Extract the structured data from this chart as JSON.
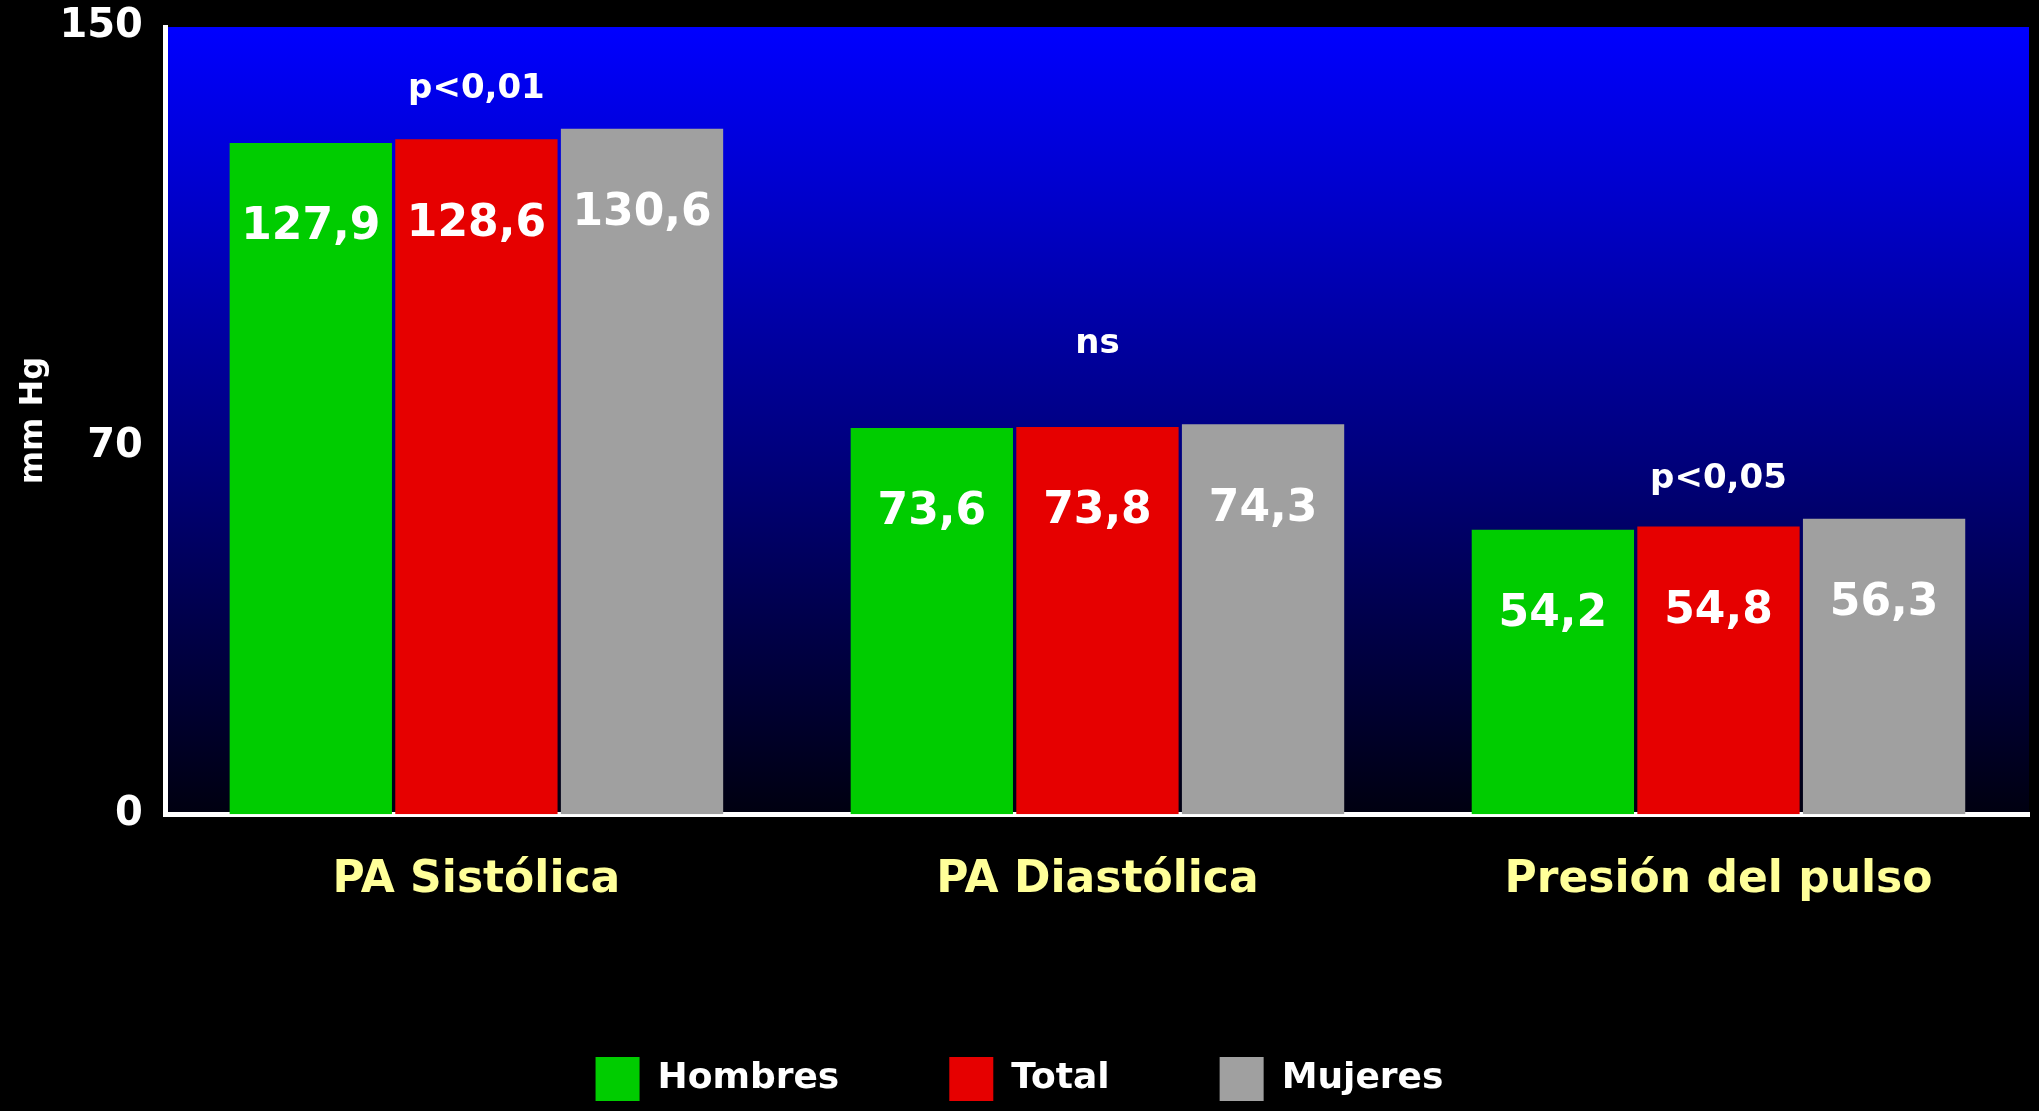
{
  "chart_data": {
    "type": "bar",
    "ylabel": "mm Hg",
    "categories": [
      "PA Sistólica",
      "PA Diastólica",
      "Presión del pulso"
    ],
    "series": [
      {
        "name": "Hombres",
        "color": "#00cc00",
        "values": [
          127.9,
          73.6,
          54.2
        ],
        "value_labels": [
          "127,9",
          "73,6",
          "54,2"
        ]
      },
      {
        "name": "Total",
        "color": "#e60000",
        "values": [
          128.6,
          73.8,
          54.8
        ],
        "value_labels": [
          "128,6",
          "73,8",
          "54,8"
        ]
      },
      {
        "name": "Mujeres",
        "color": "#a0a0a0",
        "values": [
          130.6,
          74.3,
          56.3
        ],
        "value_labels": [
          "130,6",
          "74,3",
          "56,3"
        ]
      }
    ],
    "ylim": [
      0,
      150
    ],
    "yticks": [
      0,
      70,
      150
    ],
    "legend": "bottom",
    "grid": false,
    "annotations": [
      "p<0,01",
      "ns",
      "p<0,05"
    ]
  }
}
